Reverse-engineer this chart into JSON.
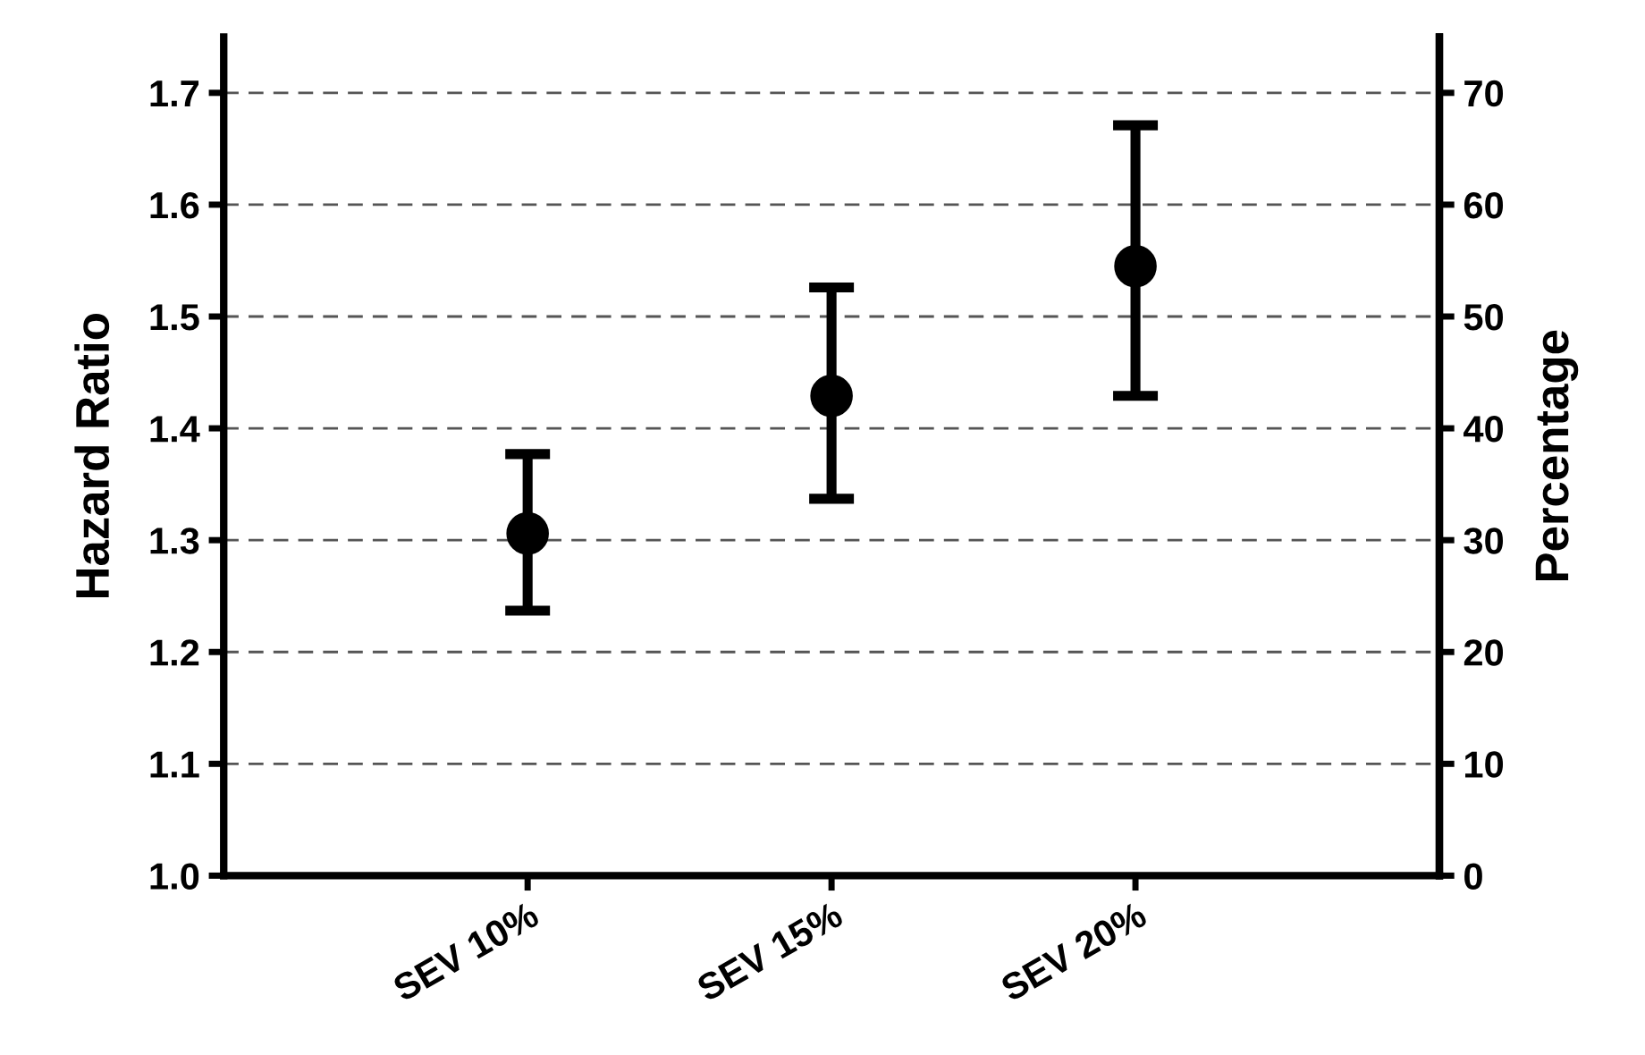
{
  "chart_data": {
    "type": "scatter",
    "categories": [
      "SEV 10%",
      "SEV 15%",
      "SEV 20%"
    ],
    "series": [
      {
        "color": "#000000",
        "values": [
          1.306,
          1.429,
          1.545
        ],
        "errors": [
          [
            1.237,
            1.377
          ],
          [
            1.337,
            1.526
          ],
          [
            1.429,
            1.671
          ]
        ]
      }
    ],
    "marker": "circle",
    "ylabel": "Hazard Ratio",
    "y2label": "Percentage",
    "ylim": [
      1.0,
      1.75
    ],
    "yticks": [
      {
        "value": 1,
        "label": "1.0"
      },
      1.1,
      1.2,
      1.3,
      1.4,
      1.5,
      1.6,
      1.7
    ],
    "y2lim": [
      0,
      75
    ],
    "y2ticks": [
      0,
      10,
      20,
      30,
      40,
      50,
      60,
      70
    ],
    "grid": "y"
  }
}
